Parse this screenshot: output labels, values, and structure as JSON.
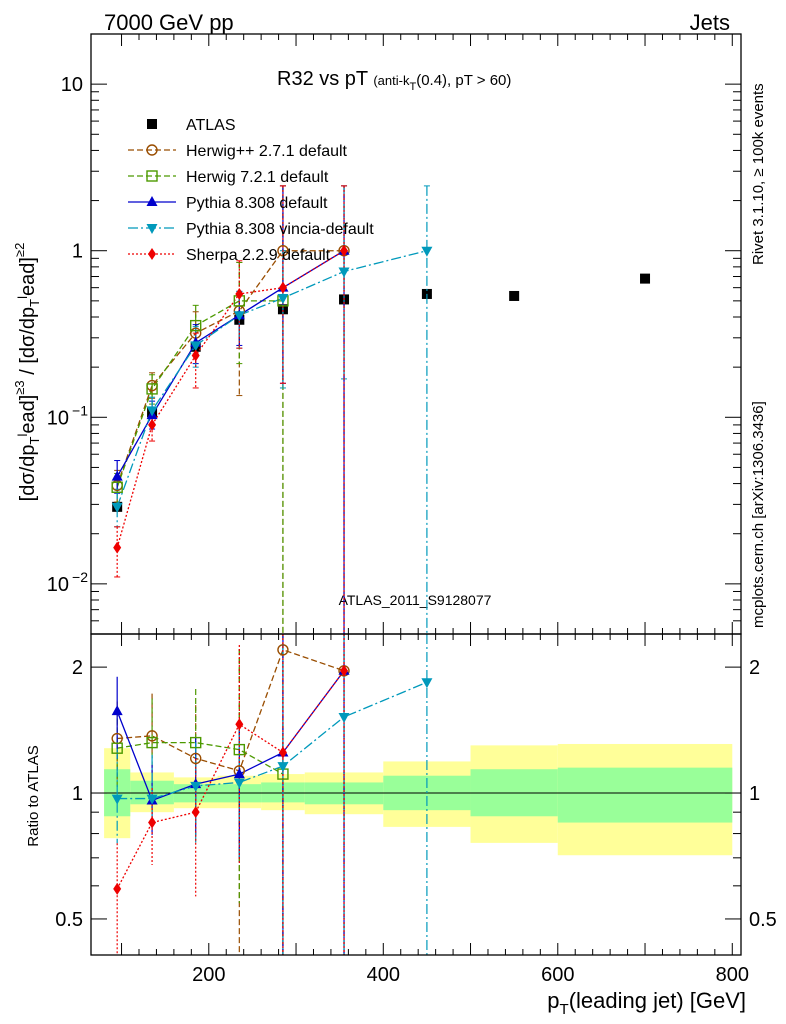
{
  "header": {
    "left": "7000 GeV pp",
    "right": "Jets"
  },
  "side_texts": {
    "rivet": "Rivet 3.1.10, ≥ 100k events",
    "mcplots": "mcplots.cern.ch [arXiv:1306.3436]"
  },
  "watermark": "ATLAS_2011_S9128077",
  "title": {
    "main": "R32 vs pT",
    "cut_a": "(anti-k",
    "cut_sub": "T",
    "cut_b": "(0.4), pT > 60)"
  },
  "ylabel": "[dσ/dpᵀead]≥³ / [dσ/dpᵀead]≥²",
  "ylabel_parts": {
    "a": "[dσ/dp",
    "s1": "T",
    "u1": "l",
    "b": "ead]",
    "p3": "≥3",
    "c": " / [dσ/dp",
    "s2": "T",
    "u2": "l",
    "d": "ead]",
    "p2": "≥2"
  },
  "ratio_ylabel": "Ratio to ATLAS",
  "xlabel": {
    "a": "p",
    "sub": "T",
    "b": "(leading jet) [GeV]"
  },
  "chart_data": {
    "type": "line",
    "x_range": [
      65,
      810
    ],
    "main": {
      "y_scale": "log",
      "y_range": [
        0.005,
        20
      ],
      "y_ticks": [
        {
          "v": 0.01,
          "base": "10",
          "exp": "−2"
        },
        {
          "v": 0.1,
          "base": "10",
          "exp": "−1"
        },
        {
          "v": 1,
          "base": "1",
          "exp": ""
        },
        {
          "v": 10,
          "base": "10",
          "exp": ""
        }
      ]
    },
    "ratio": {
      "y_scale": "log",
      "y_range": [
        0.41,
        2.4
      ],
      "y_ticks": [
        {
          "v": 0.5,
          "label": "0.5"
        },
        {
          "v": 1,
          "label": "1"
        },
        {
          "v": 2,
          "label": "2"
        }
      ]
    },
    "x_ticks": [
      {
        "v": 200,
        "label": "200"
      },
      {
        "v": 400,
        "label": "400"
      },
      {
        "v": 600,
        "label": "600"
      },
      {
        "v": 800,
        "label": "800"
      }
    ],
    "bands": [
      {
        "x0": 80,
        "x1": 110,
        "y_lo": 0.78,
        "y_hi": 1.28,
        "g_lo": 0.88,
        "g_hi": 1.14
      },
      {
        "x0": 110,
        "x1": 160,
        "y_lo": 0.9,
        "y_hi": 1.12,
        "g_lo": 0.94,
        "g_hi": 1.07
      },
      {
        "x0": 160,
        "x1": 210,
        "y_lo": 0.92,
        "y_hi": 1.09,
        "g_lo": 0.95,
        "g_hi": 1.05
      },
      {
        "x0": 210,
        "x1": 260,
        "y_lo": 0.92,
        "y_hi": 1.1,
        "g_lo": 0.95,
        "g_hi": 1.05
      },
      {
        "x0": 260,
        "x1": 310,
        "y_lo": 0.91,
        "y_hi": 1.11,
        "g_lo": 0.95,
        "g_hi": 1.06
      },
      {
        "x0": 310,
        "x1": 400,
        "y_lo": 0.89,
        "y_hi": 1.12,
        "g_lo": 0.94,
        "g_hi": 1.06
      },
      {
        "x0": 400,
        "x1": 500,
        "y_lo": 0.83,
        "y_hi": 1.19,
        "g_lo": 0.91,
        "g_hi": 1.1
      },
      {
        "x0": 500,
        "x1": 600,
        "y_lo": 0.76,
        "y_hi": 1.3,
        "g_lo": 0.88,
        "g_hi": 1.14
      },
      {
        "x0": 600,
        "x1": 800,
        "y_lo": 0.71,
        "y_hi": 1.31,
        "g_lo": 0.85,
        "g_hi": 1.15
      }
    ],
    "data": {
      "name": "ATLAS",
      "points": [
        {
          "x": 95,
          "y": 0.029
        },
        {
          "x": 135,
          "y": 0.107
        },
        {
          "x": 185,
          "y": 0.265
        },
        {
          "x": 235,
          "y": 0.385
        },
        {
          "x": 285,
          "y": 0.445
        },
        {
          "x": 355,
          "y": 0.51
        },
        {
          "x": 450,
          "y": 0.55
        },
        {
          "x": 550,
          "y": 0.535
        },
        {
          "x": 700,
          "y": 0.68
        }
      ]
    },
    "series": [
      {
        "name": "Herwig++ 2.7.1 default",
        "color": "#994d00",
        "dash": "6,3",
        "marker": "circle-open",
        "x": [
          95,
          135,
          185,
          235,
          285,
          355
        ],
        "y": [
          0.039,
          0.155,
          0.32,
          0.435,
          1.0,
          1.0
        ],
        "lo": [
          0.031,
          0.13,
          0.24,
          0.135,
          0.004,
          0.004
        ],
        "hi": [
          0.048,
          0.185,
          0.43,
          0.85,
          2.45,
          2.45
        ],
        "ratio": [
          1.35,
          1.37,
          1.21,
          1.13,
          2.2,
          1.96
        ]
      },
      {
        "name": "Herwig 7.2.1 default",
        "color": "#4c9900",
        "dash": "6,3",
        "marker": "square-open",
        "x": [
          95,
          135,
          185,
          235,
          285
        ],
        "y": [
          0.038,
          0.148,
          0.355,
          0.5,
          0.5
        ],
        "lo": [
          0.03,
          0.12,
          0.27,
          0.21,
          0.004
        ],
        "hi": [
          0.046,
          0.18,
          0.47,
          0.85,
          2.45
        ],
        "ratio": [
          1.28,
          1.32,
          1.32,
          1.27,
          1.11
        ]
      },
      {
        "name": "Pythia 8.308 default",
        "color": "#0000cc",
        "dash": "",
        "marker": "triangle-up",
        "x": [
          95,
          135,
          185,
          235,
          285,
          355
        ],
        "y": [
          0.044,
          0.103,
          0.28,
          0.41,
          0.6,
          1.0
        ],
        "lo": [
          0.035,
          0.085,
          0.21,
          0.27,
          0.16,
          0.004
        ],
        "hi": [
          0.055,
          0.125,
          0.36,
          0.57,
          2.45,
          2.45
        ],
        "ratio": [
          1.57,
          0.96,
          1.05,
          1.11,
          1.25,
          1.96
        ]
      },
      {
        "name": "Pythia 8.308 vincia-default",
        "color": "#0099bb",
        "dash": "10,3,2,3",
        "marker": "triangle-down",
        "x": [
          95,
          135,
          185,
          235,
          285,
          355,
          450
        ],
        "y": [
          0.029,
          0.11,
          0.27,
          0.41,
          0.52,
          0.75,
          1.0
        ],
        "lo": [
          0.022,
          0.09,
          0.2,
          0.26,
          0.15,
          0.17,
          0.004
        ],
        "hi": [
          0.037,
          0.132,
          0.35,
          0.57,
          1.0,
          2.45,
          2.45
        ],
        "ratio": [
          0.97,
          0.97,
          1.04,
          1.06,
          1.16,
          1.52,
          1.84
        ]
      },
      {
        "name": "Sherpa 2.2.9 default",
        "color": "#ee0000",
        "dash": "2,2",
        "marker": "diamond",
        "x": [
          95,
          135,
          185,
          235,
          285,
          355
        ],
        "y": [
          0.0165,
          0.09,
          0.235,
          0.55,
          0.6,
          1.0
        ],
        "lo": [
          0.011,
          0.072,
          0.15,
          0.26,
          0.16,
          0.004
        ],
        "hi": [
          0.022,
          0.11,
          0.32,
          0.87,
          2.45,
          2.45
        ],
        "ratio": [
          0.59,
          0.85,
          0.9,
          1.46,
          1.25,
          1.96
        ]
      }
    ]
  }
}
